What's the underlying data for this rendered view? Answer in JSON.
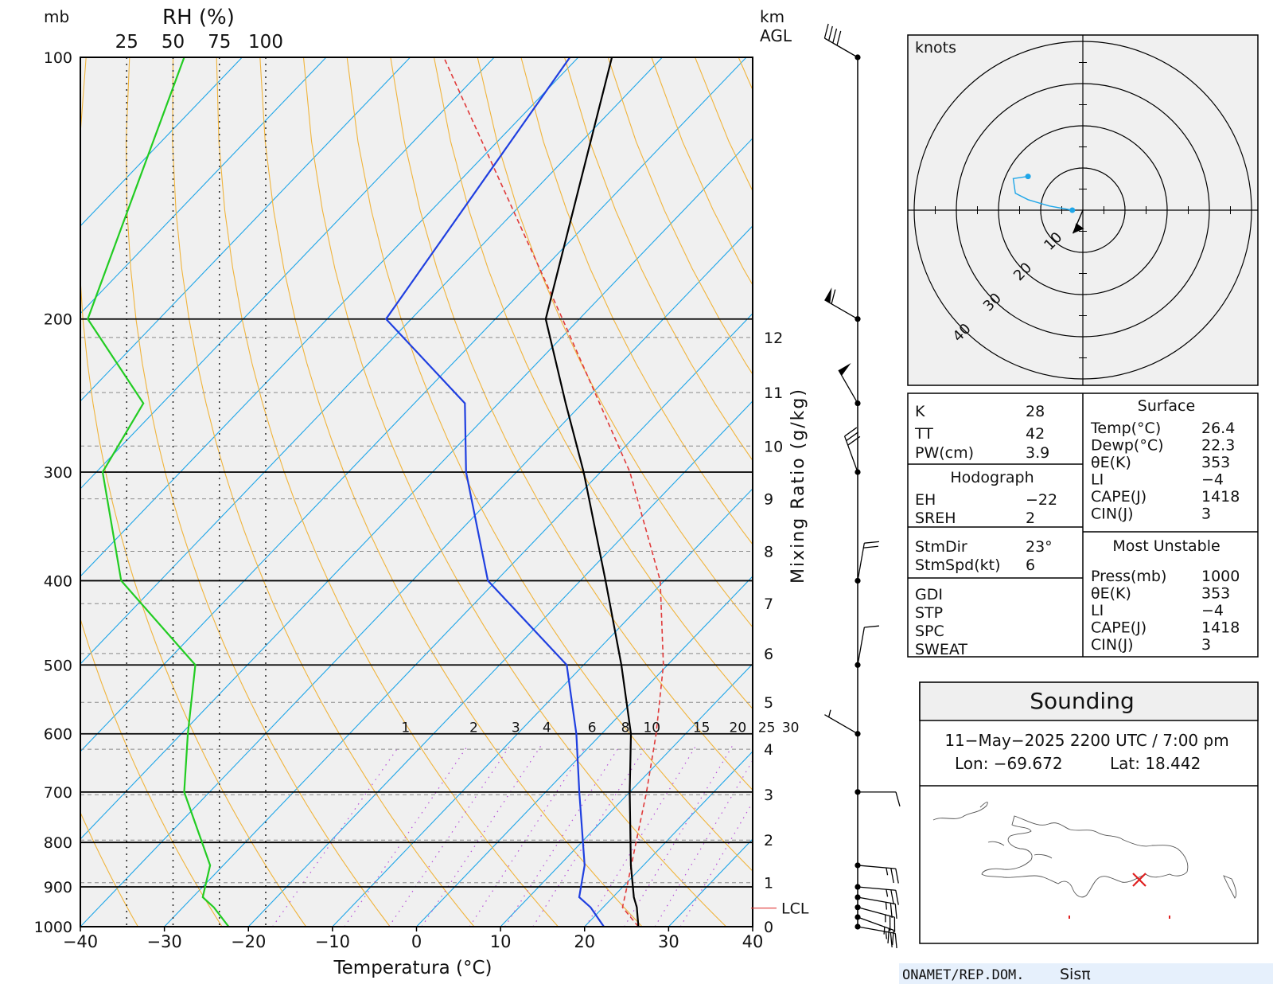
{
  "colors": {
    "temperature": "#000000",
    "dewpoint": "#1f3fe0",
    "rh": "#22cc22",
    "parcel": "#e03a3a",
    "isotherm": "#1fa6e8",
    "dry_adiabat": "#f0b43c",
    "mixing_ratio": "#b64fd8",
    "hodograph": "#1fa6e8",
    "title_text": "#3366ee",
    "plot_bg": "#f0f0f0",
    "footer_bg": "#e6f0fc"
  },
  "skewt": {
    "left_axis_unit": "mb",
    "rh_title": "RH (%)",
    "rh_ticks": [
      "25",
      "50",
      "75",
      "100"
    ],
    "right_axis_unit_1": "km",
    "right_axis_unit_2": "AGL",
    "pressure_labels": [
      "100",
      "200",
      "300",
      "400",
      "500",
      "600",
      "700",
      "800",
      "900",
      "1000"
    ],
    "km_labels": [
      "12",
      "11",
      "10",
      "9",
      "8",
      "7",
      "6",
      "5",
      "4",
      "3",
      "2",
      "1",
      "0"
    ],
    "mixing_ratio_title": "Mixing Ratio (g/kg)",
    "mixing_ratio_labels": [
      "1",
      "2",
      "3",
      "4",
      "6",
      "8",
      "10",
      "15",
      "20",
      "25",
      "30"
    ],
    "lcl_label": "LCL",
    "x_tick_labels": [
      "−40",
      "−30",
      "−20",
      "−10",
      "0",
      "10",
      "20",
      "30",
      "40"
    ],
    "xlabel": "Temperatura (°C)"
  },
  "chart_data": {
    "type": "line",
    "xlabel": "Temperatura (°C)",
    "ylabel": "mb",
    "xlim": [
      -40,
      40
    ],
    "ylim": [
      1000,
      100
    ],
    "y_scale": "log",
    "skew": "skew-T",
    "series": [
      {
        "name": "Temperature",
        "points": [
          {
            "p": 1000,
            "t": 26.4
          },
          {
            "p": 950,
            "t": 24.0
          },
          {
            "p": 925,
            "t": 22.5
          },
          {
            "p": 850,
            "t": 18.5
          },
          {
            "p": 700,
            "t": 10.0
          },
          {
            "p": 600,
            "t": 3.5
          },
          {
            "p": 500,
            "t": -5.5
          },
          {
            "p": 400,
            "t": -17.0
          },
          {
            "p": 300,
            "t": -32.0
          },
          {
            "p": 250,
            "t": -42.0
          },
          {
            "p": 200,
            "t": -54.0
          },
          {
            "p": 100,
            "t": -76.0
          }
        ]
      },
      {
        "name": "Dewpoint",
        "points": [
          {
            "p": 1000,
            "t": 22.3
          },
          {
            "p": 950,
            "t": 18.5
          },
          {
            "p": 925,
            "t": 16.0
          },
          {
            "p": 850,
            "t": 13.0
          },
          {
            "p": 700,
            "t": 4.0
          },
          {
            "p": 600,
            "t": -3.0
          },
          {
            "p": 500,
            "t": -12.0
          },
          {
            "p": 400,
            "t": -31.0
          },
          {
            "p": 300,
            "t": -46.0
          },
          {
            "p": 250,
            "t": -54.0
          },
          {
            "p": 200,
            "t": -73.0
          },
          {
            "p": 100,
            "t": -81.0
          }
        ]
      },
      {
        "name": "Parcel",
        "points": [
          {
            "p": 1000,
            "t": 26.4
          },
          {
            "p": 950,
            "t": 22.3
          },
          {
            "p": 900,
            "t": 20.5
          },
          {
            "p": 800,
            "t": 16.5
          },
          {
            "p": 700,
            "t": 12.0
          },
          {
            "p": 600,
            "t": 6.5
          },
          {
            "p": 500,
            "t": -0.5
          },
          {
            "p": 400,
            "t": -10.5
          },
          {
            "p": 300,
            "t": -26.5
          },
          {
            "p": 200,
            "t": -52.0
          },
          {
            "p": 100,
            "t": -96.0
          }
        ]
      },
      {
        "name": "RH",
        "points": [
          {
            "p": 1000,
            "rh": 80
          },
          {
            "p": 950,
            "rh": 72
          },
          {
            "p": 925,
            "rh": 66
          },
          {
            "p": 850,
            "rh": 70
          },
          {
            "p": 700,
            "rh": 56
          },
          {
            "p": 600,
            "rh": 58
          },
          {
            "p": 500,
            "rh": 62
          },
          {
            "p": 400,
            "rh": 22
          },
          {
            "p": 300,
            "rh": 12
          },
          {
            "p": 250,
            "rh": 34
          },
          {
            "p": 200,
            "rh": 4
          },
          {
            "p": 100,
            "rh": 56
          }
        ]
      }
    ],
    "wind_barbs": [
      {
        "p": 1000,
        "dir": 100,
        "spd": 25
      },
      {
        "p": 975,
        "dir": 110,
        "spd": 25
      },
      {
        "p": 950,
        "dir": 105,
        "spd": 25
      },
      {
        "p": 925,
        "dir": 100,
        "spd": 25
      },
      {
        "p": 900,
        "dir": 95,
        "spd": 25
      },
      {
        "p": 850,
        "dir": 95,
        "spd": 25
      },
      {
        "p": 700,
        "dir": 90,
        "spd": 10
      },
      {
        "p": 600,
        "dir": 300,
        "spd": 5
      },
      {
        "p": 500,
        "dir": 10,
        "spd": 10
      },
      {
        "p": 400,
        "dir": 10,
        "spd": 20
      },
      {
        "p": 300,
        "dir": 340,
        "spd": 30
      },
      {
        "p": 250,
        "dir": 330,
        "spd": 50
      },
      {
        "p": 200,
        "dir": 300,
        "spd": 60
      },
      {
        "p": 100,
        "dir": 300,
        "spd": 40
      }
    ]
  },
  "hodograph": {
    "unit_label": "knots",
    "ring_labels": [
      "10",
      "20",
      "30",
      "40"
    ],
    "points": [
      {
        "u": -2.5,
        "v": 0
      },
      {
        "u": -8.0,
        "v": 1.0
      },
      {
        "u": -13.0,
        "v": 2.5
      },
      {
        "u": -16.0,
        "v": 4.0
      },
      {
        "u": -16.5,
        "v": 7.5
      },
      {
        "u": -13.0,
        "v": 8.0
      }
    ],
    "storm_motion": {
      "dir": 23,
      "spd": 6
    }
  },
  "indices": {
    "rows": [
      {
        "label": "K",
        "value": "28"
      },
      {
        "label": "TT",
        "value": "42"
      },
      {
        "label": "PW(cm)",
        "value": "3.9"
      }
    ],
    "hodograph_title": "Hodograph",
    "hodo_rows": [
      {
        "label": "EH",
        "value": "−22"
      },
      {
        "label": "SREH",
        "value": "2"
      }
    ],
    "storm_rows": [
      {
        "label": "StmDir",
        "value": "23°"
      },
      {
        "label": "StmSpd(kt)",
        "value": "6"
      }
    ],
    "other_rows": [
      "GDI",
      "STP",
      "SPC",
      "SWEAT"
    ],
    "surface_title": "Surface",
    "surface_rows": [
      {
        "label": "Temp(°C)",
        "value": "26.4"
      },
      {
        "label": "Dewp(°C)",
        "value": "22.3"
      },
      {
        "label": "θE(K)",
        "value": "353"
      },
      {
        "label": "LI",
        "value": "−4"
      },
      {
        "label": "CAPE(J)",
        "value": "1418"
      },
      {
        "label": "CIN(J)",
        "value": "3"
      }
    ],
    "unstable_title": "Most Unstable",
    "unstable_rows": [
      {
        "label": "Press(mb)",
        "value": "1000"
      },
      {
        "label": "θE(K)",
        "value": "353"
      },
      {
        "label": "LI",
        "value": "−4"
      },
      {
        "label": "CAPE(J)",
        "value": "1418"
      },
      {
        "label": "CIN(J)",
        "value": "3"
      }
    ]
  },
  "sounding_box": {
    "title": "Sounding",
    "datetime": "11−May−2025 2200  UTC / 7:00 pm",
    "lon": "Lon:  −69.672",
    "lat": "Lat:  18.442"
  },
  "footer": {
    "org": "ONAMET/REP.DOM.",
    "brand": "Sisπ"
  }
}
